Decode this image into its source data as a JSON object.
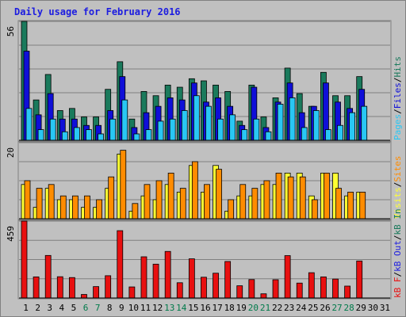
{
  "title": "Daily usage for February 2016",
  "colors": {
    "hits": "#1a7a5c",
    "files": "#0f0fd8",
    "pages": "#29c7f4",
    "visits": "#ffff33",
    "sites": "#ff8c00",
    "kbin": "#1a7a5c",
    "kbout": "#1c1ce0",
    "kbf": "#e81010",
    "weekend_day": "#007a4a",
    "weekday_day": "#000000",
    "grid": "#808080"
  },
  "chart_data": [
    {
      "type": "bar",
      "panel": "hits_files_pages",
      "y_max_label": "56",
      "ylim": [
        0,
        56
      ],
      "right_label": [
        "Pages",
        "/",
        "Files",
        "/",
        "Hits"
      ],
      "categories": [
        "1",
        "2",
        "3",
        "4",
        "5",
        "6",
        "7",
        "8",
        "9",
        "10",
        "11",
        "12",
        "13",
        "14",
        "15",
        "16",
        "17",
        "18",
        "19",
        "20",
        "21",
        "22",
        "23",
        "24",
        "25",
        "26",
        "27",
        "28",
        "29",
        "30",
        "31"
      ],
      "series": [
        {
          "name": "Hits",
          "values": [
            56,
            19,
            31,
            14,
            15,
            11,
            11,
            24,
            37,
            10,
            23,
            21,
            26,
            25,
            29,
            28,
            26,
            23,
            9,
            26,
            11,
            20,
            34,
            22,
            16,
            32,
            21,
            21,
            30,
            0,
            0
          ]
        },
        {
          "name": "Files",
          "values": [
            42,
            12,
            22,
            10,
            10,
            7,
            7,
            14,
            30,
            6,
            13,
            16,
            20,
            19,
            27,
            18,
            20,
            16,
            7,
            25,
            6,
            18,
            27,
            13,
            16,
            27,
            18,
            15,
            24,
            0,
            0
          ]
        },
        {
          "name": "Pages",
          "values": [
            15,
            5,
            10,
            4,
            6,
            5,
            3,
            10,
            19,
            3,
            5,
            9,
            10,
            14,
            21,
            16,
            10,
            12,
            5,
            10,
            4,
            17,
            20,
            6,
            14,
            5,
            7,
            13,
            16,
            0,
            0
          ]
        }
      ]
    },
    {
      "type": "bar",
      "panel": "visits_sites",
      "y_max_label": "20",
      "ylim": [
        0,
        20
      ],
      "right_label": [
        "Visits",
        "/",
        "Sites"
      ],
      "categories": [
        "1",
        "2",
        "3",
        "4",
        "5",
        "6",
        "7",
        "8",
        "9",
        "10",
        "11",
        "12",
        "13",
        "14",
        "15",
        "16",
        "17",
        "18",
        "19",
        "20",
        "21",
        "22",
        "23",
        "24",
        "25",
        "26",
        "27",
        "28",
        "29",
        "30",
        "31"
      ],
      "series": [
        {
          "name": "Visits",
          "values": [
            9,
            3,
            8,
            5,
            5,
            3,
            3,
            8,
            17,
            2,
            6,
            5,
            9,
            7,
            14,
            7,
            14,
            2,
            6,
            6,
            9,
            9,
            12,
            12,
            6,
            12,
            12,
            6,
            7,
            0,
            0
          ]
        },
        {
          "name": "Sites",
          "values": [
            10,
            8,
            9,
            6,
            6,
            6,
            5,
            11,
            18,
            4,
            9,
            10,
            12,
            8,
            15,
            9,
            13,
            5,
            9,
            8,
            10,
            12,
            11,
            11,
            5,
            12,
            8,
            7,
            7,
            0,
            0
          ]
        }
      ]
    },
    {
      "type": "bar",
      "panel": "kbytes",
      "y_max_label": "459",
      "ylim": [
        0,
        459
      ],
      "right_label": [
        "kB F",
        "/",
        "kB Out",
        "/",
        "kB In"
      ],
      "categories": [
        "1",
        "2",
        "3",
        "4",
        "5",
        "6",
        "7",
        "8",
        "9",
        "10",
        "11",
        "12",
        "13",
        "14",
        "15",
        "16",
        "17",
        "18",
        "19",
        "20",
        "21",
        "22",
        "23",
        "24",
        "25",
        "26",
        "27",
        "28",
        "29",
        "30",
        "31"
      ],
      "series": [
        {
          "name": "kB F",
          "values": [
            459,
            126,
            254,
            127,
            122,
            21,
            68,
            133,
            402,
            66,
            246,
            202,
            278,
            91,
            234,
            124,
            148,
            218,
            73,
            110,
            25,
            109,
            253,
            89,
            151,
            126,
            113,
            71,
            221,
            0,
            0
          ]
        }
      ]
    }
  ],
  "weekend_days": [
    6,
    7,
    13,
    14,
    20,
    21,
    27,
    28
  ]
}
